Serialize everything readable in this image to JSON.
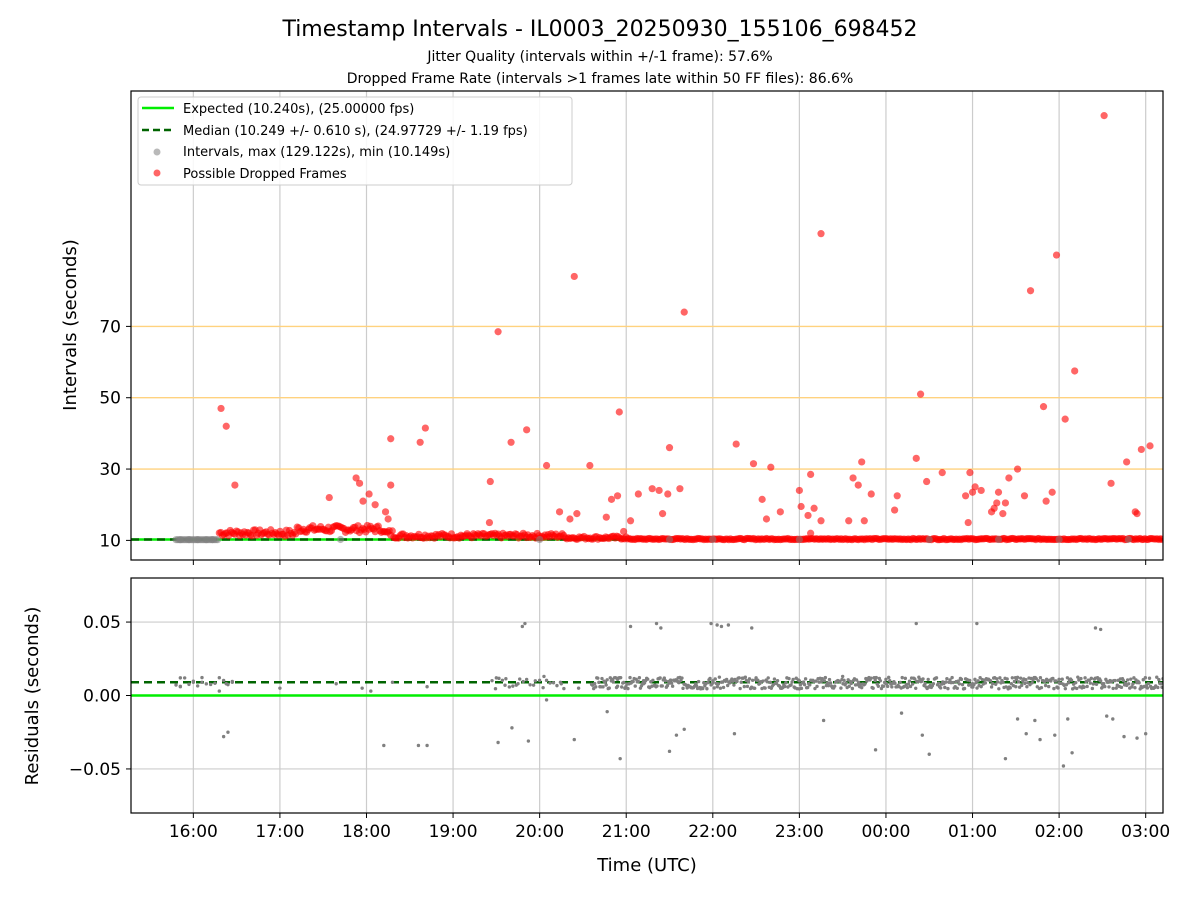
{
  "title": "Timestamp Intervals - IL0003_20250930_155106_698452",
  "subtitle_1": "Jitter Quality (intervals within +/-1 frame): 57.6%",
  "subtitle_2": "Dropped Frame Rate (intervals >1 frames late within 50 FF files): 86.6%",
  "colors": {
    "expected": "#00ee00",
    "median": "#006400",
    "intervals": "#808080",
    "dropped": "#ff0000",
    "threshold": "#ffd27f",
    "grid": "#cccccc"
  },
  "chart_data": [
    {
      "type": "scatter",
      "panel": "intervals",
      "xlabel": "",
      "ylabel": "Intervals (seconds)",
      "x_unit": "hours after 16:00 UTC on 2025-09-30",
      "xlim": [
        -0.72,
        11.2
      ],
      "ylim": [
        4.5,
        136
      ],
      "yticks": [
        10,
        30,
        50,
        70
      ],
      "ytick_labels": [
        "10",
        "30",
        "50",
        "70"
      ],
      "threshold_lines": [
        30,
        50,
        70
      ],
      "expected_line": 10.24,
      "median_line": 10.249,
      "grid": true,
      "legend": {
        "placement": "upper-left",
        "entries": [
          "Expected (10.240s), (25.00000 fps)",
          "Median (10.249 +/- 0.610 s), (24.97729 +/- 1.19 fps)",
          "Intervals, max (129.122s), min (10.149s)",
          "Possible Dropped Frames"
        ]
      },
      "series": [
        {
          "name": "Intervals, max (129.122s), min (10.149s)",
          "color": "#808080",
          "points": [
            [
              -0.15,
              10.2
            ],
            [
              -0.05,
              10.22
            ],
            [
              0.05,
              10.21
            ],
            [
              0.15,
              10.2
            ],
            [
              0.22,
              10.22
            ],
            [
              1.7,
              10.25
            ],
            [
              4.0,
              10.24
            ],
            [
              5.5,
              10.25
            ],
            [
              6.0,
              10.26
            ],
            [
              7.0,
              10.25
            ],
            [
              8.5,
              10.24
            ],
            [
              9.3,
              10.25
            ],
            [
              10.0,
              10.26
            ],
            [
              10.8,
              10.25
            ]
          ]
        },
        {
          "name": "Possible Dropped Frames",
          "color": "#ff0000",
          "points": [
            [
              0.32,
              47
            ],
            [
              0.38,
              42
            ],
            [
              0.48,
              25.5
            ],
            [
              1.57,
              22
            ],
            [
              1.88,
              27.5
            ],
            [
              1.92,
              26
            ],
            [
              1.96,
              21
            ],
            [
              2.03,
              23
            ],
            [
              2.1,
              20
            ],
            [
              2.22,
              18
            ],
            [
              2.25,
              16
            ],
            [
              2.28,
              38.5
            ],
            [
              2.28,
              25.5
            ],
            [
              2.62,
              37.5
            ],
            [
              2.68,
              41.5
            ],
            [
              3.43,
              26.5
            ],
            [
              3.42,
              15
            ],
            [
              3.52,
              68.5
            ],
            [
              3.67,
              37.5
            ],
            [
              3.85,
              41
            ],
            [
              4.08,
              31
            ],
            [
              4.23,
              18
            ],
            [
              4.35,
              16
            ],
            [
              4.4,
              84
            ],
            [
              4.43,
              17.5
            ],
            [
              4.58,
              31
            ],
            [
              4.77,
              16.5
            ],
            [
              4.83,
              21.5
            ],
            [
              4.9,
              22.5
            ],
            [
              4.92,
              46
            ],
            [
              4.97,
              12.5
            ],
            [
              5.05,
              15.5
            ],
            [
              5.14,
              23
            ],
            [
              5.3,
              24.5
            ],
            [
              5.38,
              24
            ],
            [
              5.42,
              17.5
            ],
            [
              5.48,
              23
            ],
            [
              5.5,
              36
            ],
            [
              5.62,
              24.5
            ],
            [
              5.67,
              74
            ],
            [
              6.27,
              37
            ],
            [
              6.47,
              31.5
            ],
            [
              6.57,
              21.5
            ],
            [
              6.62,
              16
            ],
            [
              6.67,
              30.5
            ],
            [
              6.78,
              18
            ],
            [
              7.0,
              24
            ],
            [
              7.02,
              19.5
            ],
            [
              7.1,
              17
            ],
            [
              7.13,
              28.5
            ],
            [
              7.13,
              12
            ],
            [
              7.17,
              19
            ],
            [
              7.25,
              15.5
            ],
            [
              7.25,
              96
            ],
            [
              7.57,
              15.5
            ],
            [
              7.62,
              27.5
            ],
            [
              7.68,
              25.5
            ],
            [
              7.72,
              32
            ],
            [
              7.75,
              15.5
            ],
            [
              7.83,
              23
            ],
            [
              8.1,
              18.5
            ],
            [
              8.13,
              22.5
            ],
            [
              8.35,
              33
            ],
            [
              8.4,
              51
            ],
            [
              8.47,
              26.5
            ],
            [
              8.65,
              29
            ],
            [
              8.92,
              22.5
            ],
            [
              8.95,
              15
            ],
            [
              8.97,
              29
            ],
            [
              9.0,
              23.5
            ],
            [
              9.03,
              25
            ],
            [
              9.1,
              24
            ],
            [
              9.22,
              18
            ],
            [
              9.25,
              19
            ],
            [
              9.28,
              20.5
            ],
            [
              9.3,
              23.5
            ],
            [
              9.35,
              17.5
            ],
            [
              9.38,
              20.5
            ],
            [
              9.42,
              27.5
            ],
            [
              9.52,
              30
            ],
            [
              9.6,
              22.5
            ],
            [
              9.67,
              80
            ],
            [
              9.82,
              47.5
            ],
            [
              9.85,
              21
            ],
            [
              9.92,
              23.5
            ],
            [
              9.97,
              90
            ],
            [
              10.07,
              44
            ],
            [
              10.18,
              57.5
            ],
            [
              10.52,
              129.1
            ],
            [
              10.6,
              26
            ],
            [
              10.78,
              32
            ],
            [
              10.88,
              18
            ],
            [
              10.9,
              17.5
            ],
            [
              10.95,
              35.5
            ],
            [
              11.05,
              36.5
            ]
          ]
        }
      ]
    },
    {
      "type": "scatter",
      "panel": "residuals",
      "xlabel": "Time (UTC)",
      "ylabel": "Residuals (seconds)",
      "x_unit": "hours after 16:00 UTC on 2025-09-30",
      "xlim": [
        -0.72,
        11.2
      ],
      "ylim": [
        -0.08,
        0.08
      ],
      "yticks": [
        -0.05,
        0.0,
        0.05
      ],
      "ytick_labels": [
        "−0.05",
        "0.00",
        "0.05"
      ],
      "xticks": [
        0,
        1,
        2,
        3,
        4,
        5,
        6,
        7,
        8,
        9,
        10,
        11
      ],
      "xtick_labels": [
        "16:00",
        "17:00",
        "18:00",
        "19:00",
        "20:00",
        "21:00",
        "22:00",
        "23:00",
        "00:00",
        "01:00",
        "02:00",
        "03:00"
      ],
      "expected_line": 0.0,
      "median_line": 0.009,
      "grid": true,
      "series": [
        {
          "name": "",
          "color": "#808080",
          "points": [
            [
              2.2,
              -0.034
            ],
            [
              2.6,
              -0.034
            ],
            [
              2.7,
              -0.034
            ],
            [
              3.8,
              0.047
            ],
            [
              3.83,
              0.049
            ],
            [
              4.4,
              -0.03
            ],
            [
              4.93,
              -0.043
            ],
            [
              5.05,
              0.047
            ],
            [
              5.35,
              0.049
            ],
            [
              5.4,
              0.046
            ],
            [
              5.5,
              -0.038
            ],
            [
              5.58,
              -0.027
            ],
            [
              5.67,
              -0.023
            ],
            [
              5.98,
              0.049
            ],
            [
              6.05,
              0.048
            ],
            [
              6.1,
              0.047
            ],
            [
              6.18,
              0.048
            ],
            [
              6.25,
              -0.026
            ],
            [
              6.45,
              0.046
            ],
            [
              0.35,
              -0.028
            ],
            [
              0.4,
              -0.025
            ],
            [
              0.3,
              0.003
            ],
            [
              3.52,
              -0.032
            ],
            [
              3.68,
              -0.022
            ],
            [
              3.87,
              -0.031
            ],
            [
              4.08,
              -0.003
            ],
            [
              4.78,
              -0.011
            ],
            [
              7.28,
              -0.017
            ],
            [
              7.88,
              -0.037
            ],
            [
              8.18,
              -0.012
            ],
            [
              8.35,
              0.049
            ],
            [
              8.42,
              -0.027
            ],
            [
              8.5,
              -0.04
            ],
            [
              9.05,
              0.049
            ],
            [
              9.38,
              -0.043
            ],
            [
              9.52,
              -0.016
            ],
            [
              9.62,
              -0.026
            ],
            [
              9.72,
              -0.017
            ],
            [
              9.78,
              -0.03
            ],
            [
              9.95,
              -0.027
            ],
            [
              10.05,
              -0.048
            ],
            [
              10.1,
              -0.016
            ],
            [
              10.15,
              -0.039
            ],
            [
              10.42,
              0.046
            ],
            [
              10.48,
              0.045
            ],
            [
              10.55,
              -0.014
            ],
            [
              10.62,
              -0.016
            ],
            [
              10.75,
              -0.028
            ],
            [
              10.9,
              -0.029
            ],
            [
              11.0,
              -0.026
            ],
            [
              1.65,
              0.008
            ],
            [
              1.95,
              0.005
            ],
            [
              2.05,
              0.003
            ],
            [
              2.3,
              0.009
            ],
            [
              2.7,
              0.006
            ],
            [
              -0.15,
              0.012
            ],
            [
              -0.15,
              0.006
            ],
            [
              0.0,
              0.009
            ],
            [
              0.1,
              0.009
            ],
            [
              0.38,
              0.008
            ],
            [
              0.45,
              0.009
            ],
            [
              1.0,
              0.005
            ],
            [
              3.5,
              0.012
            ],
            [
              3.6,
              0.007
            ],
            [
              3.75,
              0.008
            ],
            [
              3.95,
              0.01
            ],
            [
              4.05,
              0.013
            ],
            [
              4.25,
              0.008
            ],
            [
              4.45,
              0.005
            ],
            [
              4.9,
              0.011
            ],
            [
              5.2,
              0.008
            ],
            [
              5.6,
              0.012
            ],
            [
              6.0,
              0.01
            ],
            [
              6.5,
              0.012
            ],
            [
              7.0,
              0.01
            ],
            [
              7.5,
              0.013
            ],
            [
              8.0,
              0.011
            ],
            [
              8.5,
              0.006
            ],
            [
              9.0,
              0.008
            ],
            [
              9.5,
              0.006
            ],
            [
              10.0,
              0.011
            ],
            [
              10.5,
              0.008
            ],
            [
              11.0,
              0.006
            ]
          ]
        }
      ]
    }
  ]
}
